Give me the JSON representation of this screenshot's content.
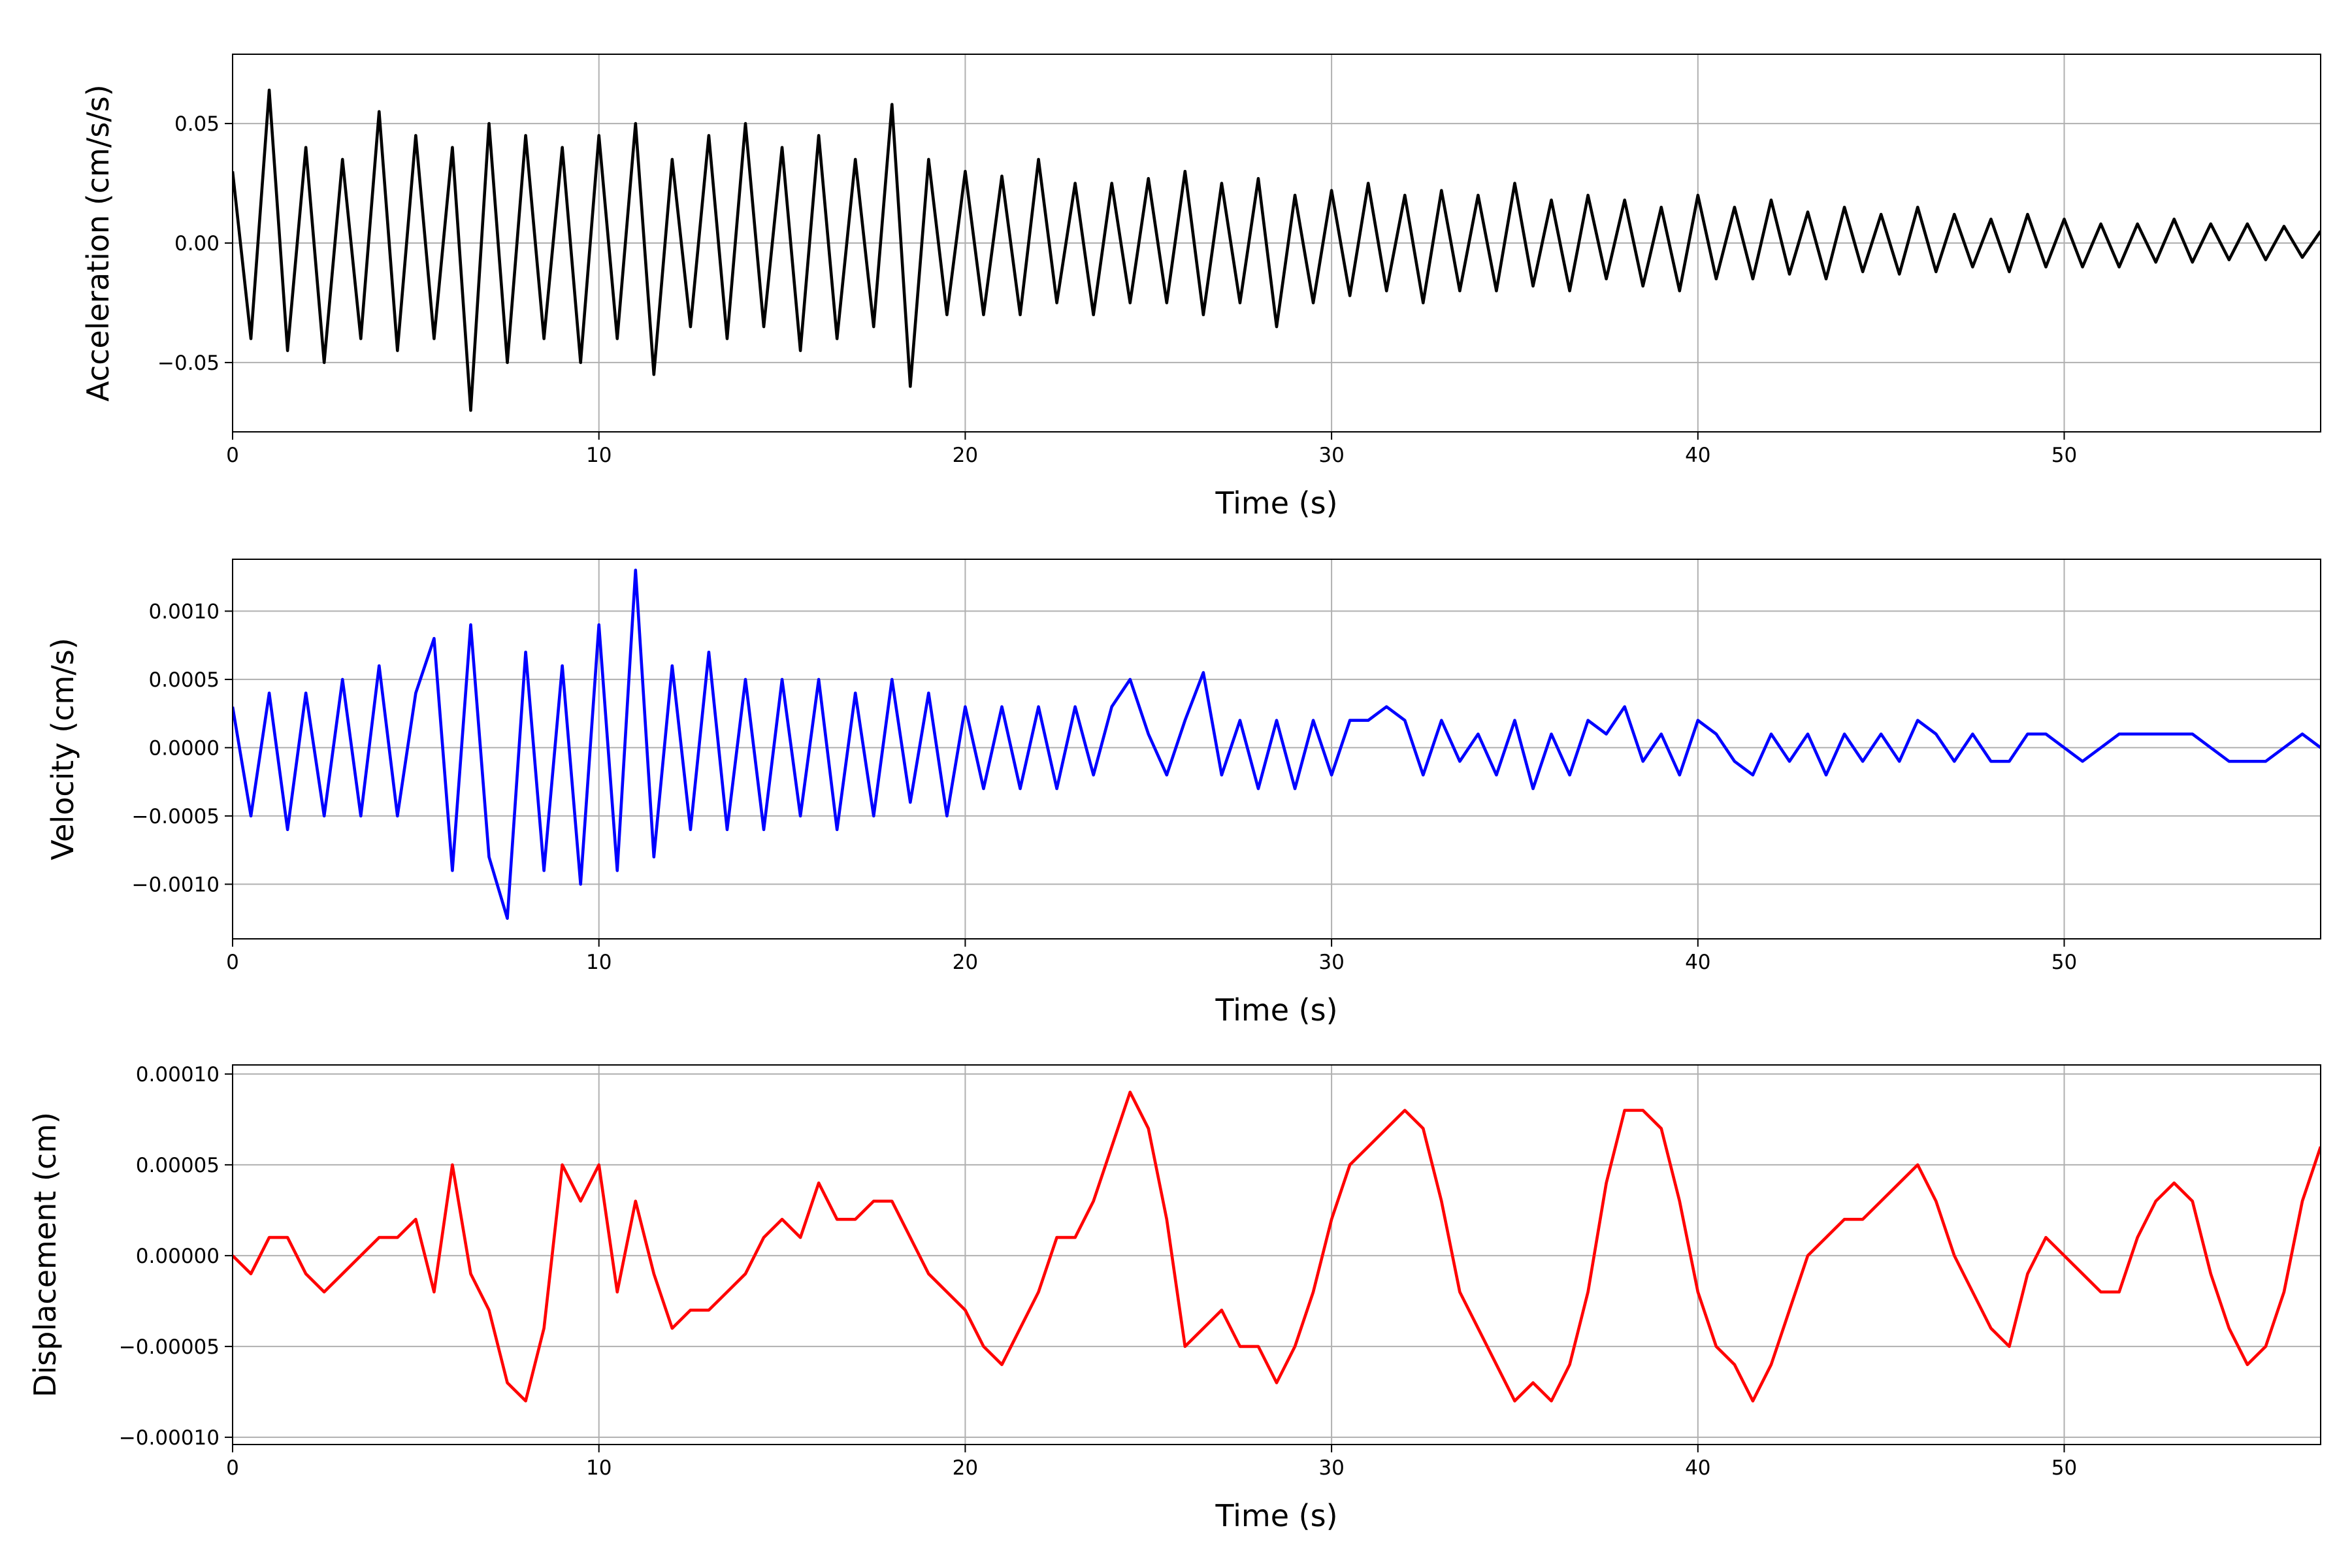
{
  "chart_data": [
    {
      "type": "line",
      "xlabel": "Time (s)",
      "ylabel": "Acceleration (cm/s/s)",
      "x": [
        0,
        0.5,
        1,
        1.5,
        2,
        2.5,
        3,
        3.5,
        4,
        4.5,
        5,
        5.5,
        6,
        6.5,
        7,
        7.5,
        8,
        8.5,
        9,
        9.5,
        10,
        10.5,
        11,
        11.5,
        12,
        12.5,
        13,
        13.5,
        14,
        14.5,
        15,
        15.5,
        16,
        16.5,
        17,
        17.5,
        18,
        18.5,
        19,
        19.5,
        20,
        20.5,
        21,
        21.5,
        22,
        22.5,
        23,
        23.5,
        24,
        24.5,
        25,
        25.5,
        26,
        26.5,
        27,
        27.5,
        28,
        28.5,
        29,
        29.5,
        30,
        30.5,
        31,
        31.5,
        32,
        32.5,
        33,
        33.5,
        34,
        34.5,
        35,
        35.5,
        36,
        36.5,
        37,
        37.5,
        38,
        38.5,
        39,
        39.5,
        40,
        40.5,
        41,
        41.5,
        42,
        42.5,
        43,
        43.5,
        44,
        44.5,
        45,
        45.5,
        46,
        46.5,
        47,
        47.5,
        48,
        48.5,
        49,
        49.5,
        50,
        50.5,
        51,
        51.5,
        52,
        52.5,
        53,
        53.5,
        54,
        54.5,
        55,
        55.5,
        56,
        56.5,
        57
      ],
      "series": [
        {
          "color": "#000000",
          "values": [
            0.03,
            -0.04,
            0.064,
            -0.045,
            0.04,
            -0.05,
            0.035,
            -0.04,
            0.055,
            -0.045,
            0.045,
            -0.04,
            0.04,
            -0.07,
            0.05,
            -0.05,
            0.045,
            -0.04,
            0.04,
            -0.05,
            0.045,
            -0.04,
            0.05,
            -0.055,
            0.035,
            -0.035,
            0.045,
            -0.04,
            0.05,
            -0.035,
            0.04,
            -0.045,
            0.045,
            -0.04,
            0.035,
            -0.035,
            0.058,
            -0.06,
            0.035,
            -0.03,
            0.03,
            -0.03,
            0.028,
            -0.03,
            0.035,
            -0.025,
            0.025,
            -0.03,
            0.025,
            -0.025,
            0.027,
            -0.025,
            0.03,
            -0.03,
            0.025,
            -0.025,
            0.027,
            -0.035,
            0.02,
            -0.025,
            0.022,
            -0.022,
            0.025,
            -0.02,
            0.02,
            -0.025,
            0.022,
            -0.02,
            0.02,
            -0.02,
            0.025,
            -0.018,
            0.018,
            -0.02,
            0.02,
            -0.015,
            0.018,
            -0.018,
            0.015,
            -0.02,
            0.02,
            -0.015,
            0.015,
            -0.015,
            0.018,
            -0.013,
            0.013,
            -0.015,
            0.015,
            -0.012,
            0.012,
            -0.013,
            0.015,
            -0.012,
            0.012,
            -0.01,
            0.01,
            -0.012,
            0.012,
            -0.01,
            0.01,
            -0.01,
            0.008,
            -0.01,
            0.008,
            -0.008,
            0.01,
            -0.008,
            0.008,
            -0.007,
            0.008,
            -0.007,
            0.007,
            -0.006,
            0.005
          ]
        }
      ],
      "xlim": [
        0,
        57
      ],
      "ylim": [
        -0.079,
        0.079
      ],
      "xticks": [
        0,
        10,
        20,
        30,
        40,
        50
      ],
      "yticks": [
        {
          "value": -0.05,
          "label": "−0.05"
        },
        {
          "value": 0,
          "label": "0.00"
        },
        0.05
      ],
      "grid": true
    },
    {
      "type": "line",
      "xlabel": "Time (s)",
      "ylabel": "Velocity (cm/s)",
      "x": [
        0,
        0.5,
        1,
        1.5,
        2,
        2.5,
        3,
        3.5,
        4,
        4.5,
        5,
        5.5,
        6,
        6.5,
        7,
        7.5,
        8,
        8.5,
        9,
        9.5,
        10,
        10.5,
        11,
        11.5,
        12,
        12.5,
        13,
        13.5,
        14,
        14.5,
        15,
        15.5,
        16,
        16.5,
        17,
        17.5,
        18,
        18.5,
        19,
        19.5,
        20,
        20.5,
        21,
        21.5,
        22,
        22.5,
        23,
        23.5,
        24,
        24.5,
        25,
        25.5,
        26,
        26.5,
        27,
        27.5,
        28,
        28.5,
        29,
        29.5,
        30,
        30.5,
        31,
        31.5,
        32,
        32.5,
        33,
        33.5,
        34,
        34.5,
        35,
        35.5,
        36,
        36.5,
        37,
        37.5,
        38,
        38.5,
        39,
        39.5,
        40,
        40.5,
        41,
        41.5,
        42,
        42.5,
        43,
        43.5,
        44,
        44.5,
        45,
        45.5,
        46,
        46.5,
        47,
        47.5,
        48,
        48.5,
        49,
        49.5,
        50,
        50.5,
        51,
        51.5,
        52,
        52.5,
        53,
        53.5,
        54,
        54.5,
        55,
        55.5,
        56,
        56.5,
        57
      ],
      "series": [
        {
          "color": "#0000ff",
          "values": [
            0.0003,
            -0.0005,
            0.0004,
            -0.0006,
            0.0004,
            -0.0005,
            0.0005,
            -0.0005,
            0.0006,
            -0.0005,
            0.0004,
            0.0008,
            -0.0009,
            0.0009,
            -0.0008,
            -0.00125,
            0.0007,
            -0.0009,
            0.0006,
            -0.001,
            0.0009,
            -0.0009,
            0.0013,
            -0.0008,
            0.0006,
            -0.0006,
            0.0007,
            -0.0006,
            0.0005,
            -0.0006,
            0.0005,
            -0.0005,
            0.0005,
            -0.0006,
            0.0004,
            -0.0005,
            0.0005,
            -0.0004,
            0.0004,
            -0.0005,
            0.0003,
            -0.0003,
            0.0003,
            -0.0003,
            0.0003,
            -0.0003,
            0.0003,
            -0.0002,
            0.0003,
            0.0005,
            0.0001,
            -0.0002,
            0.0002,
            0.00055,
            -0.0002,
            0.0002,
            -0.0003,
            0.0002,
            -0.0003,
            0.0002,
            -0.0002,
            0.0002,
            0.0002,
            0.0003,
            0.0002,
            -0.0002,
            0.0002,
            -0.0001,
            0.0001,
            -0.0002,
            0.0002,
            -0.0003,
            0.0001,
            -0.0002,
            0.0002,
            0.0001,
            0.0003,
            -0.0001,
            0.0001,
            -0.0002,
            0.0002,
            0.0001,
            -0.0001,
            -0.0002,
            0.0001,
            -0.0001,
            0.0001,
            -0.0002,
            0.0001,
            -0.0001,
            0.0001,
            -0.0001,
            0.0002,
            0.0001,
            -0.0001,
            0.0001,
            -0.0001,
            -0.0001,
            0.0001,
            0.0001,
            0,
            -0.0001,
            0,
            0.0001,
            0.0001,
            0.0001,
            0.0001,
            0.0001,
            0,
            -0.0001,
            -0.0001,
            -0.0001,
            0,
            0.0001,
            0
          ]
        }
      ],
      "xlim": [
        0,
        57
      ],
      "ylim": [
        -0.0014,
        0.00138
      ],
      "xticks": [
        0,
        10,
        20,
        30,
        40,
        50
      ],
      "yticks": [
        {
          "value": -0.001,
          "label": "−0.0010"
        },
        {
          "value": -0.0005,
          "label": "−0.0005"
        },
        {
          "value": 0,
          "label": "0.0000"
        },
        0.0005,
        {
          "value": 0.001,
          "label": "0.0010"
        }
      ],
      "grid": true
    },
    {
      "type": "line",
      "xlabel": "Time (s)",
      "ylabel": "Displacement (cm)",
      "x": [
        0,
        0.5,
        1,
        1.5,
        2,
        2.5,
        3,
        3.5,
        4,
        4.5,
        5,
        5.5,
        6,
        6.5,
        7,
        7.5,
        8,
        8.5,
        9,
        9.5,
        10,
        10.5,
        11,
        11.5,
        12,
        12.5,
        13,
        13.5,
        14,
        14.5,
        15,
        15.5,
        16,
        16.5,
        17,
        17.5,
        18,
        18.5,
        19,
        19.5,
        20,
        20.5,
        21,
        21.5,
        22,
        22.5,
        23,
        23.5,
        24,
        24.5,
        25,
        25.5,
        26,
        26.5,
        27,
        27.5,
        28,
        28.5,
        29,
        29.5,
        30,
        30.5,
        31,
        31.5,
        32,
        32.5,
        33,
        33.5,
        34,
        34.5,
        35,
        35.5,
        36,
        36.5,
        37,
        37.5,
        38,
        38.5,
        39,
        39.5,
        40,
        40.5,
        41,
        41.5,
        42,
        42.5,
        43,
        43.5,
        44,
        44.5,
        45,
        45.5,
        46,
        46.5,
        47,
        47.5,
        48,
        48.5,
        49,
        49.5,
        50,
        50.5,
        51,
        51.5,
        52,
        52.5,
        53,
        53.5,
        54,
        54.5,
        55,
        55.5,
        56,
        56.5,
        57
      ],
      "series": [
        {
          "color": "#ff0000",
          "values": [
            0,
            -1e-05,
            1e-05,
            1e-05,
            -1e-05,
            -2e-05,
            -1e-05,
            0,
            1e-05,
            1e-05,
            2e-05,
            -2e-05,
            5e-05,
            -1e-05,
            -3e-05,
            -7e-05,
            -8e-05,
            -4e-05,
            5e-05,
            3e-05,
            5e-05,
            -2e-05,
            3e-05,
            -1e-05,
            -4e-05,
            -3e-05,
            -3e-05,
            -2e-05,
            -1e-05,
            1e-05,
            2e-05,
            1e-05,
            4e-05,
            2e-05,
            2e-05,
            3e-05,
            3e-05,
            1e-05,
            -1e-05,
            -2e-05,
            -3e-05,
            -5e-05,
            -6e-05,
            -4e-05,
            -2e-05,
            1e-05,
            1e-05,
            3e-05,
            6e-05,
            9e-05,
            7e-05,
            2e-05,
            -5e-05,
            -4e-05,
            -3e-05,
            -5e-05,
            -5e-05,
            -7e-05,
            -5e-05,
            -2e-05,
            2e-05,
            5e-05,
            6e-05,
            7e-05,
            8e-05,
            7e-05,
            3e-05,
            -2e-05,
            -4e-05,
            -6e-05,
            -8e-05,
            -7e-05,
            -8e-05,
            -6e-05,
            -2e-05,
            4e-05,
            8e-05,
            8e-05,
            7e-05,
            3e-05,
            -2e-05,
            -5e-05,
            -6e-05,
            -8e-05,
            -6e-05,
            -3e-05,
            0,
            1e-05,
            2e-05,
            2e-05,
            3e-05,
            4e-05,
            5e-05,
            3e-05,
            0,
            -2e-05,
            -4e-05,
            -5e-05,
            -1e-05,
            1e-05,
            0,
            -1e-05,
            -2e-05,
            -2e-05,
            1e-05,
            3e-05,
            4e-05,
            3e-05,
            -1e-05,
            -4e-05,
            -6e-05,
            -5e-05,
            -2e-05,
            3e-05,
            6e-05
          ]
        }
      ],
      "xlim": [
        0,
        57
      ],
      "ylim": [
        -0.000104,
        0.000105
      ],
      "xticks": [
        0,
        10,
        20,
        30,
        40,
        50
      ],
      "yticks": [
        {
          "value": -0.0001,
          "label": "−0.00010"
        },
        {
          "value": -5e-05,
          "label": "−0.00005"
        },
        {
          "value": 0,
          "label": "0.00000"
        },
        {
          "value": 5e-05,
          "label": "0.00005"
        },
        {
          "value": 0.0001,
          "label": "0.00010"
        }
      ],
      "grid": true
    }
  ]
}
